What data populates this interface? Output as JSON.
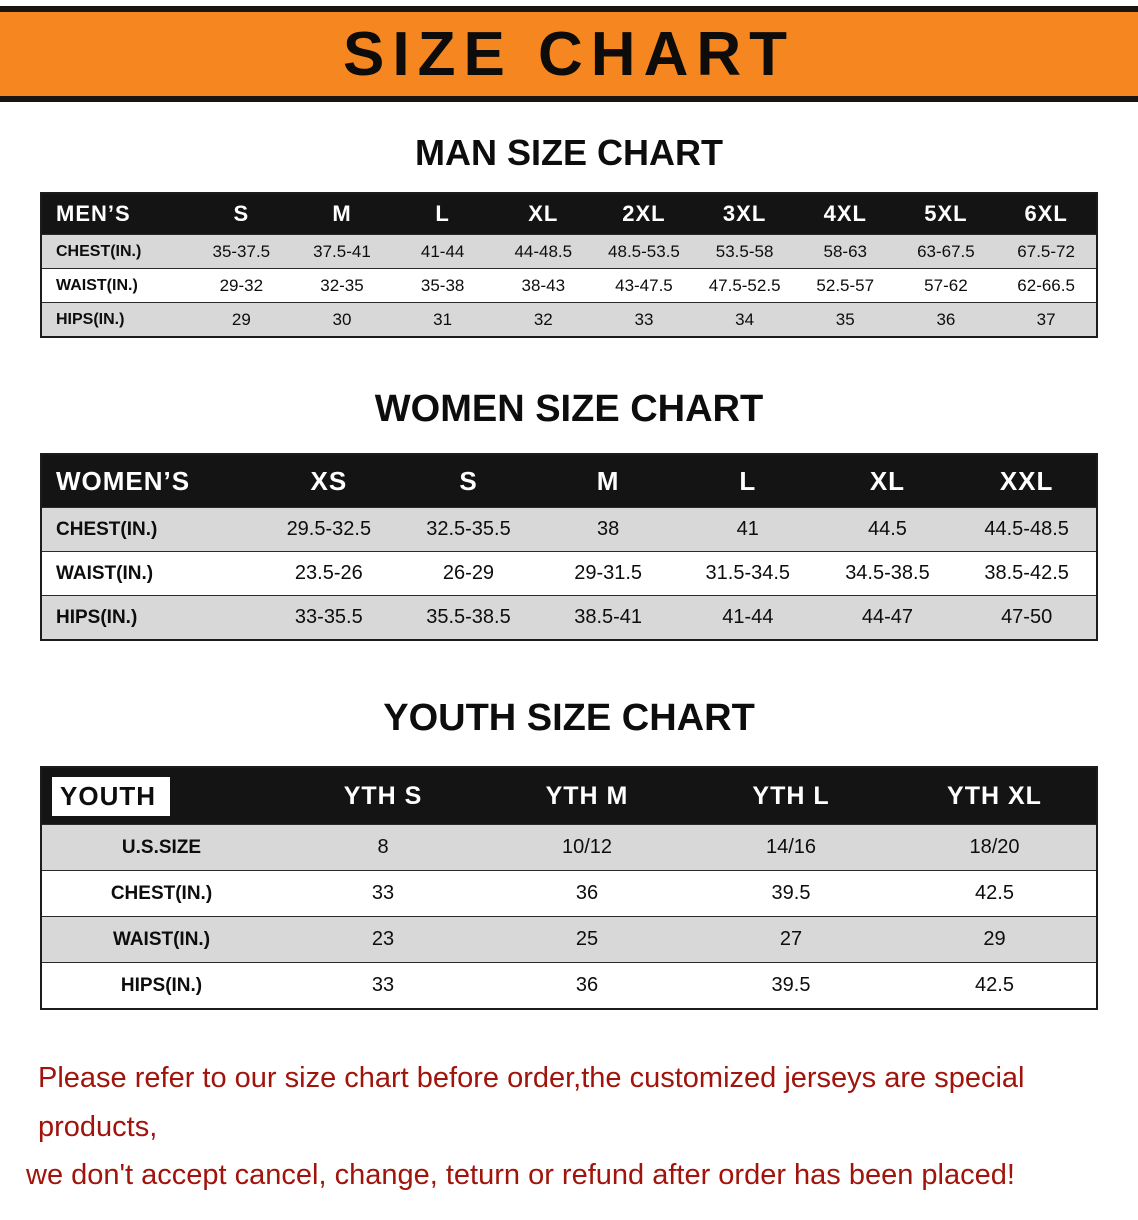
{
  "banner": {
    "title": "SIZE CHART",
    "bg_color": "#f6861f"
  },
  "colors": {
    "header_bar_bg": "#141414",
    "header_bar_text": "#ffffff",
    "striped_row_bg": "#d8d8d8",
    "footer_text": "#a0140c"
  },
  "sections": {
    "men": {
      "heading": "MAN SIZE CHART"
    },
    "women": {
      "heading": "WOMEN SIZE CHART"
    },
    "youth": {
      "heading": "YOUTH SIZE CHART"
    }
  },
  "tables": {
    "men": {
      "label_header": "MEN’S",
      "columns": [
        "S",
        "M",
        "L",
        "XL",
        "2XL",
        "3XL",
        "4XL",
        "5XL",
        "6XL"
      ],
      "rows": [
        {
          "label": "CHEST(IN.)",
          "values": [
            "35-37.5",
            "37.5-41",
            "41-44",
            "44-48.5",
            "48.5-53.5",
            "53.5-58",
            "58-63",
            "63-67.5",
            "67.5-72"
          ]
        },
        {
          "label": "WAIST(IN.)",
          "values": [
            "29-32",
            "32-35",
            "35-38",
            "38-43",
            "43-47.5",
            "47.5-52.5",
            "52.5-57",
            "57-62",
            "62-66.5"
          ]
        },
        {
          "label": "HIPS(IN.)",
          "values": [
            "29",
            "30",
            "31",
            "32",
            "33",
            "34",
            "35",
            "36",
            "37"
          ]
        }
      ]
    },
    "women": {
      "label_header": "WOMEN’S",
      "columns": [
        "XS",
        "S",
        "M",
        "L",
        "XL",
        "XXL"
      ],
      "rows": [
        {
          "label": "CHEST(IN.)",
          "values": [
            "29.5-32.5",
            "32.5-35.5",
            "38",
            "41",
            "44.5",
            "44.5-48.5"
          ]
        },
        {
          "label": "WAIST(IN.)",
          "values": [
            "23.5-26",
            "26-29",
            "29-31.5",
            "31.5-34.5",
            "34.5-38.5",
            "38.5-42.5"
          ]
        },
        {
          "label": "HIPS(IN.)",
          "values": [
            "33-35.5",
            "35.5-38.5",
            "38.5-41",
            "41-44",
            "44-47",
            "47-50"
          ]
        }
      ]
    },
    "youth": {
      "label_header": "YOUTH",
      "columns": [
        "YTH S",
        "YTH M",
        "YTH L",
        "YTH XL"
      ],
      "rows": [
        {
          "label": "U.S.SIZE",
          "values": [
            "8",
            "10/12",
            "14/16",
            "18/20"
          ]
        },
        {
          "label": "CHEST(IN.)",
          "values": [
            "33",
            "36",
            "39.5",
            "42.5"
          ]
        },
        {
          "label": "WAIST(IN.)",
          "values": [
            "23",
            "25",
            "27",
            "29"
          ]
        },
        {
          "label": "HIPS(IN.)",
          "values": [
            "33",
            "36",
            "39.5",
            "42.5"
          ]
        }
      ]
    }
  },
  "footer": {
    "line1": "Please refer to our size chart before order,the customized jerseys are special products,",
    "line2": "we don't accept cancel, change, teturn or refund after order has been placed!"
  }
}
